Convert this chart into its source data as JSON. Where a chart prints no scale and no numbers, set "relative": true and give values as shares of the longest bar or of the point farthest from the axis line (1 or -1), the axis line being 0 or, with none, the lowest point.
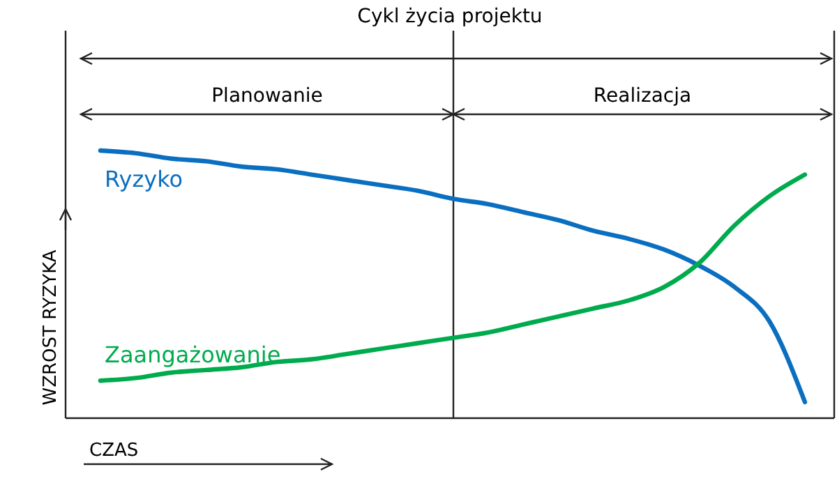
{
  "chart_data": {
    "type": "line",
    "title": "Cykl życia projektu",
    "xlabel": "CZAS",
    "ylabel": "WZROST RYZYKA",
    "relative": true,
    "annotations": [
      "Planowanie",
      "Realizacja"
    ],
    "categories": [
      null,
      null,
      null,
      null,
      null,
      null,
      null,
      null,
      null,
      null,
      null,
      null,
      null,
      null,
      null,
      null,
      null,
      null,
      null,
      null,
      null
    ],
    "series": [
      {
        "name": "Ryzyko",
        "color": "#0a6fc0",
        "values": [
          1,
          0.99,
          0.97,
          0.96,
          0.94,
          0.93,
          0.91,
          0.89,
          0.87,
          0.85,
          0.82,
          0.8,
          0.77,
          0.74,
          0.7,
          0.67,
          0.63,
          0.57,
          0.49,
          0.36,
          0.06
        ]
      },
      {
        "name": "Zaangażowanie",
        "color": "#00ab4e",
        "values": [
          0.14,
          0.15,
          0.17,
          0.18,
          0.19,
          0.21,
          0.22,
          0.24,
          0.26,
          0.28,
          0.3,
          0.32,
          0.35,
          0.38,
          0.41,
          0.44,
          0.49,
          0.58,
          0.72,
          0.83,
          0.91
        ]
      }
    ],
    "marker": "none",
    "line_style": "solid"
  }
}
